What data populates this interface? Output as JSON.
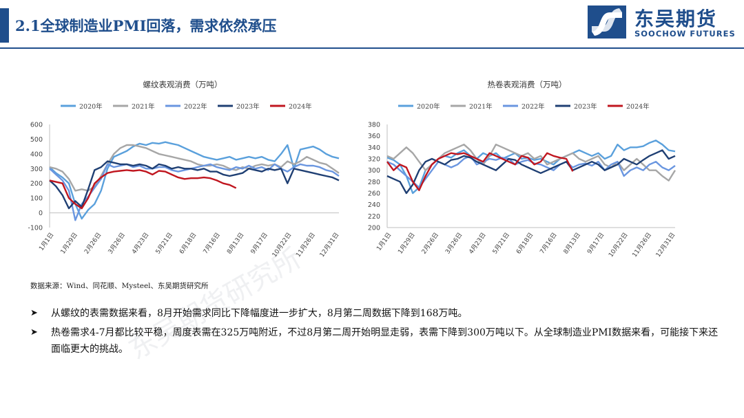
{
  "header": {
    "title": "2.1全球制造业PMI回落，需求依然承压",
    "logo_cn": "东吴期货",
    "logo_en": "SOOCHOW FUTURES"
  },
  "source": "数据来源：Wind、同花顺、Mysteel、东吴期货研究所",
  "bullets": [
    "从螺纹的表需数据来看，8月开始需求同比下降幅度进一步扩大，8月第二周数据下降到168万吨。",
    "热卷需求4-7月都比较平稳，周度表需在325万吨附近，不过8月第二周开始明显走弱，表需下降到300万吨以下。从全球制造业PMI数据来看，可能接下来还面临更大的挑战。"
  ],
  "watermark": "东吴期货研究所",
  "colors": {
    "accent": "#1f4e8c",
    "s2020": "#5aa0dc",
    "s2021": "#a6a6a6",
    "s2022": "#6a96e0",
    "s2023": "#1f3f73",
    "s2024": "#c0161f"
  },
  "chart_data": [
    {
      "type": "line",
      "title": "螺纹表观消费（万吨）",
      "xticks": [
        "1月1日",
        "1月29日",
        "2月26日",
        "3月26日",
        "4月23日",
        "5月21日",
        "6月18日",
        "7月16日",
        "8月13日",
        "9月17日",
        "10月22日",
        "11月26日",
        "12月31日"
      ],
      "ylim": [
        -100,
        600
      ],
      "yticks": [
        -100,
        0,
        100,
        200,
        300,
        400,
        500,
        600
      ],
      "legend": "top",
      "series": [
        {
          "name": "2020年",
          "color": "s2020",
          "values": [
            310,
            270,
            240,
            200,
            60,
            -40,
            20,
            60,
            150,
            300,
            380,
            400,
            420,
            450,
            470,
            460,
            475,
            470,
            480,
            470,
            460,
            440,
            420,
            400,
            380,
            370,
            360,
            370,
            380,
            360,
            370,
            380,
            370,
            380,
            360,
            350,
            400,
            460,
            300,
            430,
            440,
            450,
            430,
            400,
            380,
            370
          ]
        },
        {
          "name": "2021年",
          "color": "s2021",
          "values": [
            310,
            300,
            280,
            230,
            150,
            160,
            150,
            180,
            250,
            330,
            400,
            440,
            460,
            460,
            450,
            440,
            420,
            400,
            390,
            380,
            370,
            360,
            350,
            330,
            320,
            320,
            330,
            320,
            300,
            290,
            310,
            300,
            320,
            330,
            320,
            330,
            310,
            350,
            330,
            350,
            380,
            360,
            340,
            330,
            300,
            270
          ]
        },
        {
          "name": "2022年",
          "color": "s2022",
          "values": [
            300,
            260,
            220,
            150,
            -50,
            60,
            110,
            170,
            230,
            330,
            310,
            320,
            330,
            310,
            320,
            300,
            300,
            310,
            310,
            290,
            280,
            290,
            300,
            310,
            320,
            330,
            310,
            300,
            290,
            310,
            300,
            320,
            300,
            310,
            290,
            330,
            300,
            280,
            310,
            330,
            320,
            320,
            310,
            290,
            280,
            250
          ]
        },
        {
          "name": "2023年",
          "color": "s2023",
          "values": [
            220,
            180,
            120,
            30,
            80,
            40,
            160,
            290,
            310,
            350,
            340,
            330,
            330,
            320,
            330,
            320,
            300,
            330,
            320,
            300,
            310,
            300,
            300,
            290,
            300,
            280,
            280,
            260,
            250,
            260,
            270,
            300,
            290,
            280,
            300,
            290,
            300,
            200,
            300,
            290,
            280,
            270,
            260,
            250,
            240,
            220
          ]
        },
        {
          "name": "2024年",
          "color": "s2024",
          "values": [
            220,
            210,
            200,
            100,
            60,
            30,
            100,
            200,
            240,
            270,
            280,
            285,
            290,
            285,
            290,
            280,
            260,
            285,
            280,
            260,
            240,
            230,
            235,
            235,
            240,
            235,
            220,
            200,
            190,
            168
          ]
        }
      ]
    },
    {
      "type": "line",
      "title": "热卷表观消费（万吨）",
      "xticks": [
        "1月1日",
        "1月29日",
        "2月26日",
        "3月26日",
        "4月23日",
        "5月21日",
        "6月18日",
        "7月16日",
        "8月13日",
        "9月17日",
        "10月22日",
        "11月26日",
        "12月31日"
      ],
      "ylim": [
        200,
        380
      ],
      "yticks": [
        200,
        220,
        240,
        260,
        280,
        300,
        320,
        340,
        360,
        380
      ],
      "legend": "top",
      "series": [
        {
          "name": "2020年",
          "color": "s2020",
          "values": [
            322,
            318,
            310,
            290,
            260,
            270,
            300,
            310,
            320,
            325,
            322,
            330,
            335,
            325,
            320,
            330,
            325,
            330,
            320,
            325,
            330,
            320,
            322,
            318,
            320,
            315,
            310,
            320,
            325,
            330,
            335,
            330,
            325,
            330,
            320,
            325,
            345,
            335,
            340,
            340,
            342,
            348,
            352,
            345,
            335,
            333
          ]
        },
        {
          "name": "2021年",
          "color": "s2021",
          "values": [
            325,
            320,
            330,
            340,
            330,
            315,
            300,
            310,
            320,
            330,
            335,
            340,
            345,
            335,
            320,
            310,
            325,
            345,
            340,
            335,
            330,
            325,
            330,
            320,
            325,
            310,
            315,
            320,
            325,
            330,
            320,
            315,
            320,
            325,
            310,
            305,
            315,
            300,
            310,
            320,
            310,
            300,
            300,
            290,
            282,
            300
          ]
        },
        {
          "name": "2022年",
          "color": "s2022",
          "values": [
            315,
            310,
            300,
            290,
            280,
            270,
            285,
            300,
            315,
            310,
            305,
            310,
            320,
            325,
            310,
            315,
            320,
            318,
            322,
            320,
            310,
            315,
            318,
            312,
            310,
            305,
            300,
            310,
            315,
            305,
            310,
            312,
            308,
            315,
            300,
            310,
            315,
            290,
            300,
            305,
            300,
            310,
            315,
            305,
            300,
            308
          ]
        },
        {
          "name": "2023年",
          "color": "s2023",
          "values": [
            290,
            285,
            280,
            260,
            275,
            300,
            315,
            320,
            315,
            310,
            318,
            320,
            325,
            322,
            315,
            310,
            305,
            300,
            310,
            320,
            318,
            310,
            305,
            300,
            295,
            300,
            305,
            310,
            315,
            300,
            305,
            310,
            315,
            310,
            300,
            305,
            310,
            320,
            315,
            310,
            318,
            325,
            330,
            335,
            320,
            325
          ]
        },
        {
          "name": "2024年",
          "color": "s2024",
          "values": [
            315,
            300,
            310,
            305,
            280,
            265,
            290,
            310,
            320,
            325,
            330,
            328,
            330,
            325,
            320,
            315,
            330,
            325,
            320,
            315,
            310,
            325,
            322,
            310,
            315,
            330,
            325,
            322,
            320,
            298
          ]
        }
      ]
    }
  ]
}
